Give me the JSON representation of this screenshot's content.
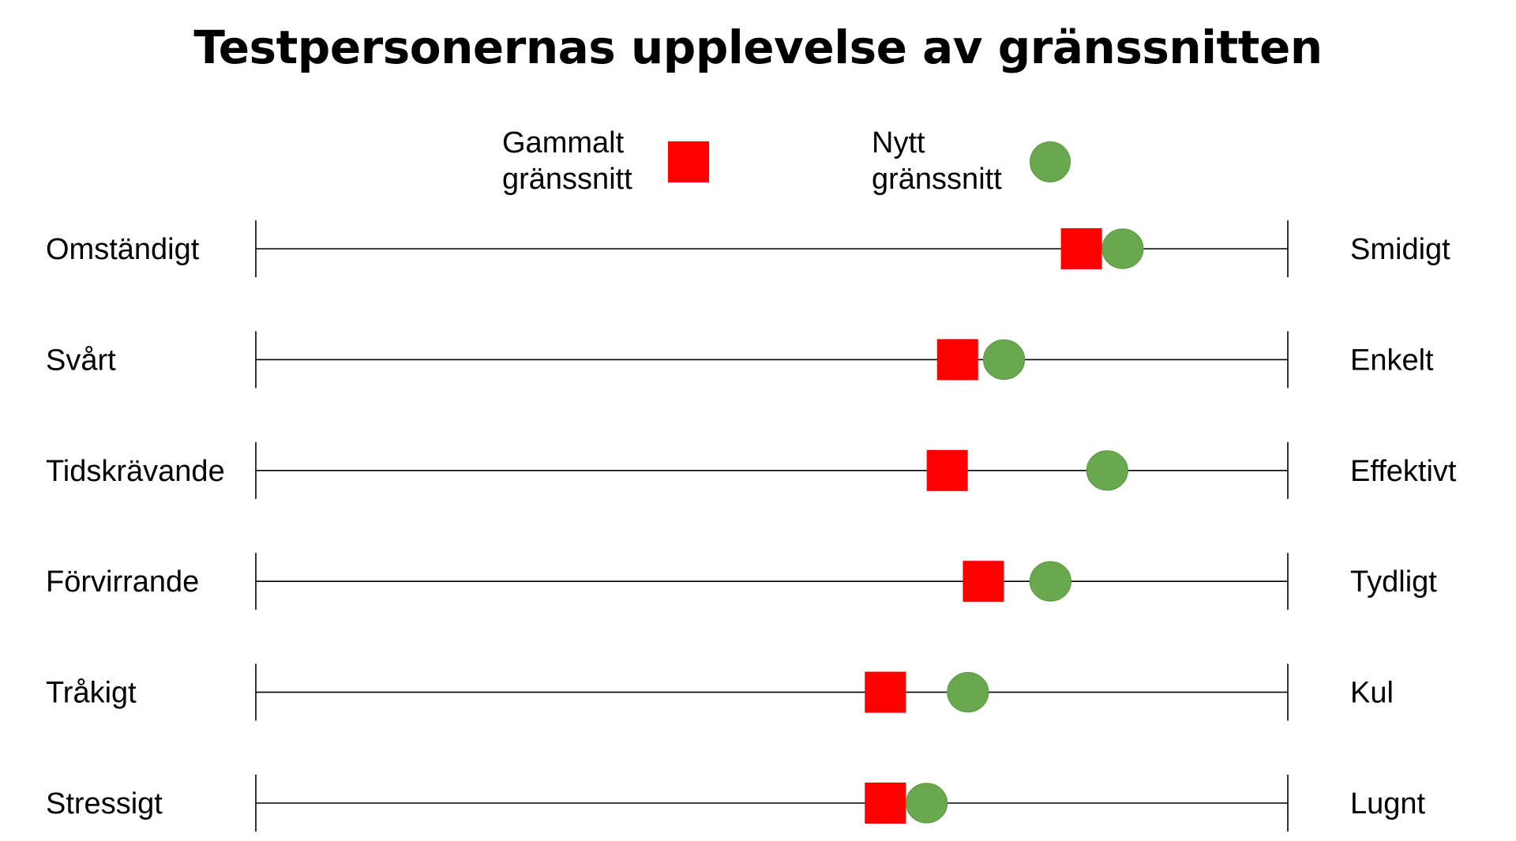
{
  "chart_data": {
    "type": "scatter",
    "title": "Testpersonernas upplevelse av gränssnitten",
    "scales": [
      {
        "left": "Omständigt",
        "right": "Smidigt"
      },
      {
        "left": "Svårt",
        "right": "Enkelt"
      },
      {
        "left": "Tidskrävande",
        "right": "Effektivt"
      },
      {
        "left": "Förvirrande",
        "right": "Tydligt"
      },
      {
        "left": "Tråkigt",
        "right": "Kul"
      },
      {
        "left": "Stressigt",
        "right": "Lugnt"
      }
    ],
    "xlim": [
      0,
      1
    ],
    "series": [
      {
        "name": "Gammalt gränssnitt",
        "marker": "square",
        "color": "#ff0000",
        "values": [
          0.8,
          0.68,
          0.67,
          0.705,
          0.61,
          0.61
        ]
      },
      {
        "name": "Nytt gränssnitt",
        "marker": "circle",
        "color": "#6aa84f",
        "values": [
          0.84,
          0.725,
          0.825,
          0.77,
          0.69,
          0.65
        ]
      }
    ],
    "legend_position": "top-center",
    "grid": false
  },
  "legend": {
    "old_label": "Gammalt\ngränssnitt",
    "new_label": "Nytt\ngränssnitt"
  }
}
